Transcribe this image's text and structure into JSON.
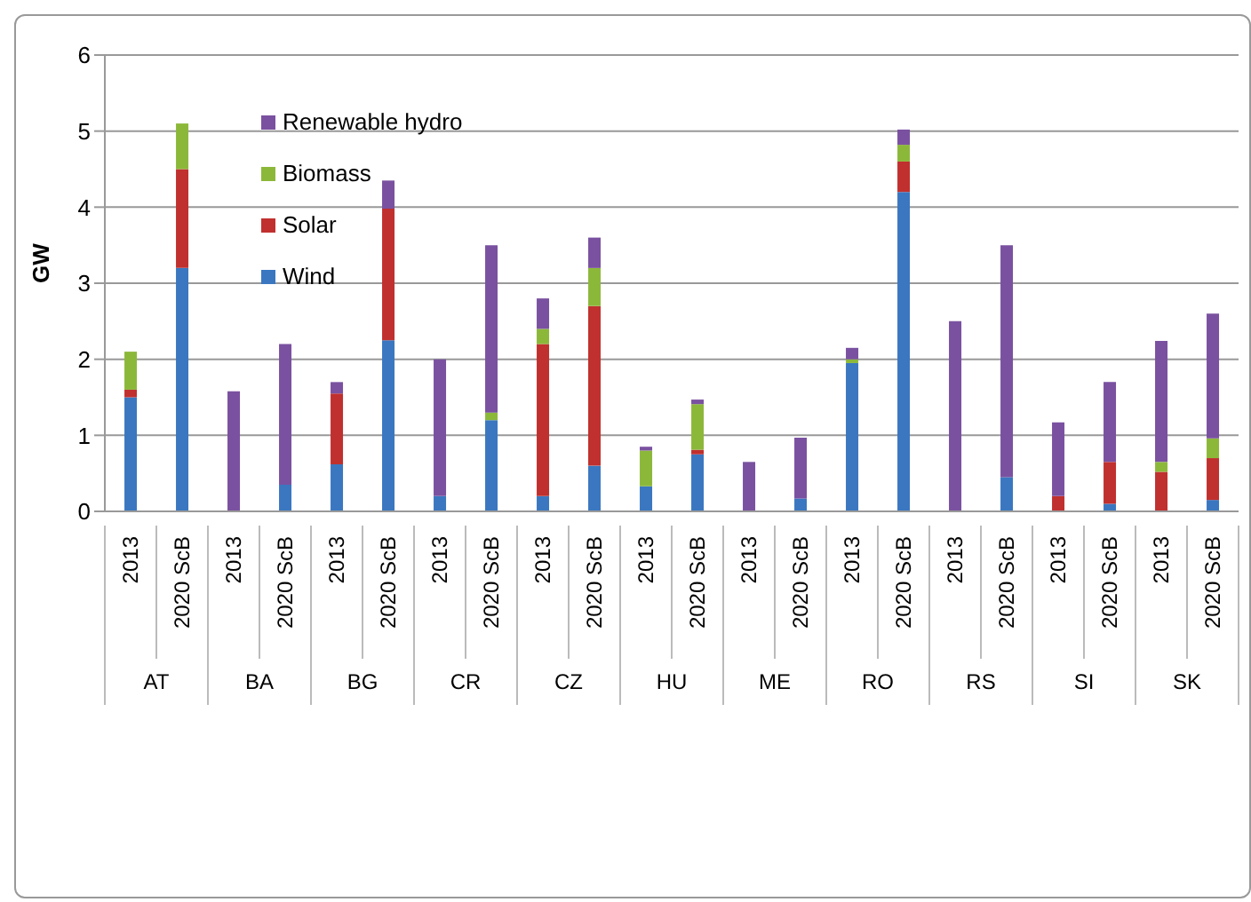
{
  "chart_data": {
    "type": "bar",
    "stacked": true,
    "ylabel": "GW",
    "categories": [
      "2013",
      "2020 ScB",
      "2013",
      "2020 ScB",
      "2013",
      "2020 ScB",
      "2013",
      "2020 ScB",
      "2013",
      "2020 ScB",
      "2013",
      "2020 ScB",
      "2013",
      "2020 ScB",
      "2013",
      "2020 ScB",
      "2013",
      "2020 ScB",
      "2013",
      "2020 ScB",
      "2013",
      "2020 ScB"
    ],
    "annotations": [
      "AT",
      "BA",
      "BG",
      "CR",
      "CZ",
      "HU",
      "ME",
      "RO",
      "RS",
      "SI",
      "SK"
    ],
    "series": [
      {
        "name": "Wind",
        "color": "#3a77c0",
        "values": [
          1.5,
          3.2,
          0,
          0.35,
          0.62,
          2.25,
          0.2,
          1.2,
          0.2,
          0.6,
          0.33,
          0.75,
          0,
          0.17,
          1.95,
          4.2,
          0,
          0.45,
          0,
          0.1,
          0,
          0.15
        ]
      },
      {
        "name": "Solar",
        "color": "#c0302e",
        "values": [
          0.1,
          1.3,
          0,
          0,
          0.93,
          1.73,
          0,
          0,
          2.0,
          2.1,
          0,
          0.06,
          0,
          0,
          0,
          0.4,
          0,
          0,
          0.2,
          0.55,
          0.52,
          0.55
        ]
      },
      {
        "name": "Biomass",
        "color": "#8cb83a",
        "values": [
          0.5,
          0.6,
          0,
          0,
          0,
          0,
          0,
          0.1,
          0.2,
          0.5,
          0.47,
          0.6,
          0,
          0,
          0.05,
          0.22,
          0,
          0,
          0,
          0,
          0.13,
          0.26
        ]
      },
      {
        "name": "Renewable hydro",
        "color": "#7a51a0",
        "values": [
          0,
          0,
          1.58,
          1.85,
          0.15,
          0.37,
          1.8,
          2.2,
          0.4,
          0.4,
          0.05,
          0.06,
          0.65,
          0.8,
          0.15,
          0.2,
          2.5,
          3.05,
          0.97,
          1.05,
          1.59,
          1.64
        ]
      }
    ],
    "ylim": [
      0,
      6
    ],
    "yticks": [
      0,
      1,
      2,
      3,
      4,
      5,
      6
    ],
    "grid": "y",
    "legend": "top left"
  }
}
